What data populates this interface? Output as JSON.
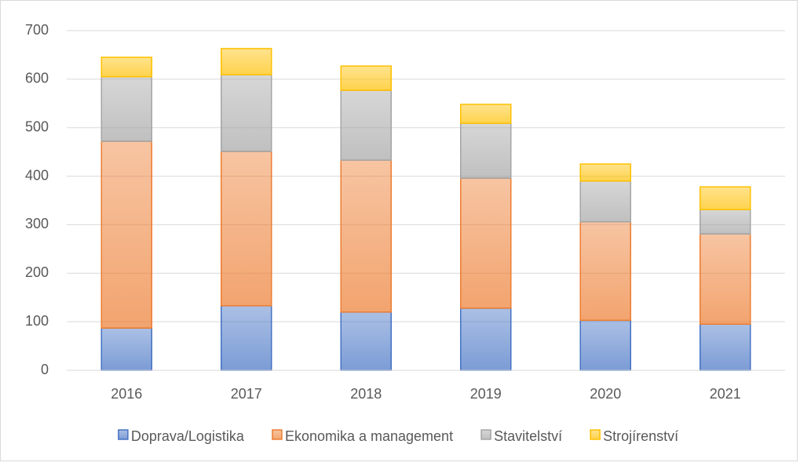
{
  "chart_data": {
    "type": "stacked_bar",
    "categories": [
      "2016",
      "2017",
      "2018",
      "2019",
      "2020",
      "2021"
    ],
    "series": [
      {
        "name": "Doprava/Logistika",
        "color": "#4472c4",
        "values": [
          87,
          133,
          120,
          128,
          103,
          95
        ]
      },
      {
        "name": "Ekonomika a management",
        "color": "#ed7d31",
        "values": [
          385,
          318,
          313,
          268,
          203,
          186
        ]
      },
      {
        "name": "Stavitelství",
        "color": "#a5a5a5",
        "values": [
          133,
          158,
          144,
          113,
          84,
          50
        ]
      },
      {
        "name": "Strojírenství",
        "color": "#ffc000",
        "values": [
          40,
          54,
          50,
          39,
          35,
          47
        ]
      }
    ],
    "ylim": [
      0,
      700
    ],
    "yticks": [
      0,
      100,
      200,
      300,
      400,
      500,
      600,
      700
    ],
    "grid": true,
    "legend": "bottom"
  }
}
